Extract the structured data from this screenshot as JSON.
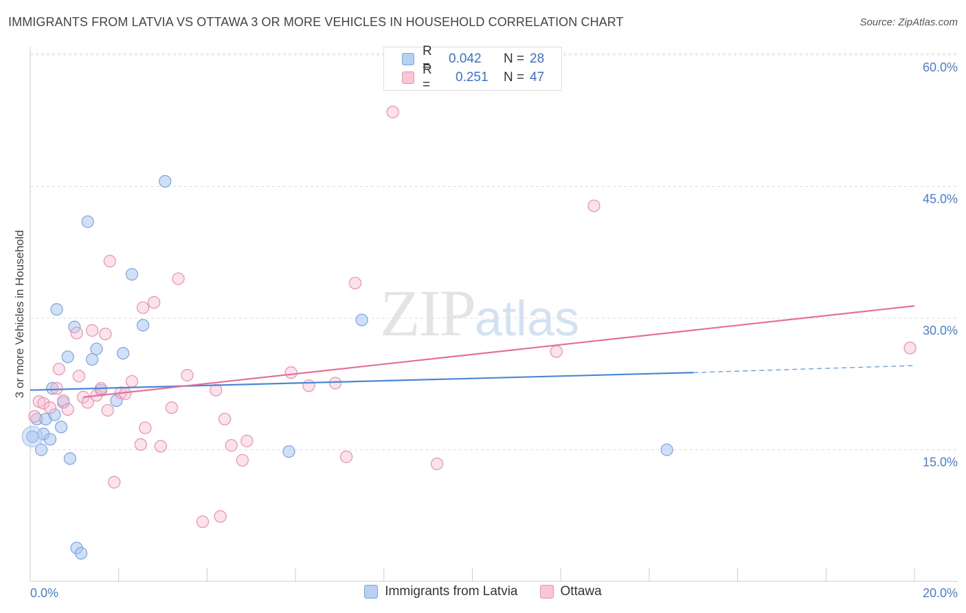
{
  "title": "IMMIGRANTS FROM LATVIA VS OTTAWA 3 OR MORE VEHICLES IN HOUSEHOLD CORRELATION CHART",
  "source": "Source: ZipAtlas.com",
  "watermark": {
    "zip": "ZIP",
    "atlas": "atlas"
  },
  "legend": {
    "rows": [
      {
        "r_label": "R =",
        "r_value": "0.042",
        "n_label": "N =",
        "n_value": "28",
        "color": "#b8d0f2",
        "border": "#7aa3e0"
      },
      {
        "r_label": "R =",
        "r_value": "0.251",
        "n_label": "N =",
        "n_value": "47",
        "color": "#f8c6d6",
        "border": "#e890ad"
      }
    ]
  },
  "bottom_legend": [
    {
      "label": "Immigrants from Latvia",
      "color": "#b8d0f2",
      "border": "#7aa3e0"
    },
    {
      "label": "Ottawa",
      "color": "#f8c6d6",
      "border": "#e890ad"
    }
  ],
  "chart_data": {
    "type": "scatter",
    "xlabel": "",
    "ylabel": "3 or more Vehicles in Household",
    "xlim": [
      0,
      20
    ],
    "ylim": [
      0,
      60
    ],
    "x_tick_labels": [
      "0.0%",
      "20.0%"
    ],
    "y_ticks": [
      15,
      30,
      45,
      60
    ],
    "y_tick_labels": [
      "15.0%",
      "30.0%",
      "45.0%",
      "60.0%"
    ],
    "grid": true,
    "colors": {
      "series1": "#4a86d8",
      "series2": "#e4709a"
    },
    "series": [
      {
        "name": "Immigrants from Latvia",
        "points": [
          [
            0.05,
            16.5
          ],
          [
            0.15,
            18.5
          ],
          [
            0.25,
            15.0
          ],
          [
            0.3,
            16.8
          ],
          [
            0.35,
            18.5
          ],
          [
            0.45,
            16.2
          ],
          [
            0.5,
            22.0
          ],
          [
            0.55,
            19.0
          ],
          [
            0.6,
            31.0
          ],
          [
            0.7,
            17.6
          ],
          [
            0.75,
            20.4
          ],
          [
            0.85,
            25.6
          ],
          [
            0.9,
            14.0
          ],
          [
            1.0,
            29.0
          ],
          [
            1.05,
            3.8
          ],
          [
            1.15,
            3.2
          ],
          [
            1.3,
            41.0
          ],
          [
            1.4,
            25.3
          ],
          [
            1.5,
            26.5
          ],
          [
            1.6,
            21.8
          ],
          [
            1.95,
            20.6
          ],
          [
            2.1,
            26.0
          ],
          [
            2.3,
            35.0
          ],
          [
            2.55,
            29.2
          ],
          [
            3.05,
            45.6
          ],
          [
            7.5,
            29.8
          ],
          [
            5.85,
            14.8
          ],
          [
            14.4,
            15.0
          ]
        ],
        "trend": [
          [
            0.0,
            21.8
          ],
          [
            15.0,
            23.8
          ]
        ],
        "trend_dashed": [
          [
            15.0,
            23.8
          ],
          [
            20.0,
            24.6
          ]
        ]
      },
      {
        "name": "Ottawa",
        "points": [
          [
            0.2,
            20.5
          ],
          [
            0.3,
            20.3
          ],
          [
            0.45,
            19.8
          ],
          [
            0.6,
            22.0
          ],
          [
            0.65,
            24.2
          ],
          [
            0.75,
            20.6
          ],
          [
            0.85,
            19.6
          ],
          [
            1.05,
            28.3
          ],
          [
            1.1,
            23.4
          ],
          [
            1.2,
            21.0
          ],
          [
            1.3,
            20.4
          ],
          [
            1.4,
            28.6
          ],
          [
            1.5,
            21.2
          ],
          [
            1.6,
            22.0
          ],
          [
            1.7,
            28.2
          ],
          [
            1.75,
            19.5
          ],
          [
            1.8,
            36.5
          ],
          [
            1.9,
            11.3
          ],
          [
            2.05,
            21.5
          ],
          [
            2.15,
            21.4
          ],
          [
            2.3,
            22.8
          ],
          [
            2.5,
            15.6
          ],
          [
            2.55,
            31.2
          ],
          [
            2.6,
            17.5
          ],
          [
            2.8,
            31.8
          ],
          [
            2.95,
            15.4
          ],
          [
            3.2,
            19.8
          ],
          [
            3.35,
            34.5
          ],
          [
            3.55,
            23.5
          ],
          [
            3.9,
            6.8
          ],
          [
            4.2,
            21.8
          ],
          [
            4.3,
            7.4
          ],
          [
            4.4,
            18.5
          ],
          [
            4.55,
            15.5
          ],
          [
            4.8,
            13.8
          ],
          [
            4.9,
            16.0
          ],
          [
            5.9,
            23.8
          ],
          [
            6.3,
            22.3
          ],
          [
            6.9,
            22.6
          ],
          [
            7.15,
            14.2
          ],
          [
            7.35,
            34.0
          ],
          [
            9.2,
            13.4
          ],
          [
            8.2,
            53.5
          ],
          [
            11.9,
            26.2
          ],
          [
            12.75,
            42.8
          ],
          [
            19.9,
            26.6
          ],
          [
            0.1,
            18.8
          ]
        ],
        "trend": [
          [
            1.2,
            21.0
          ],
          [
            20.0,
            31.4
          ]
        ]
      }
    ]
  }
}
